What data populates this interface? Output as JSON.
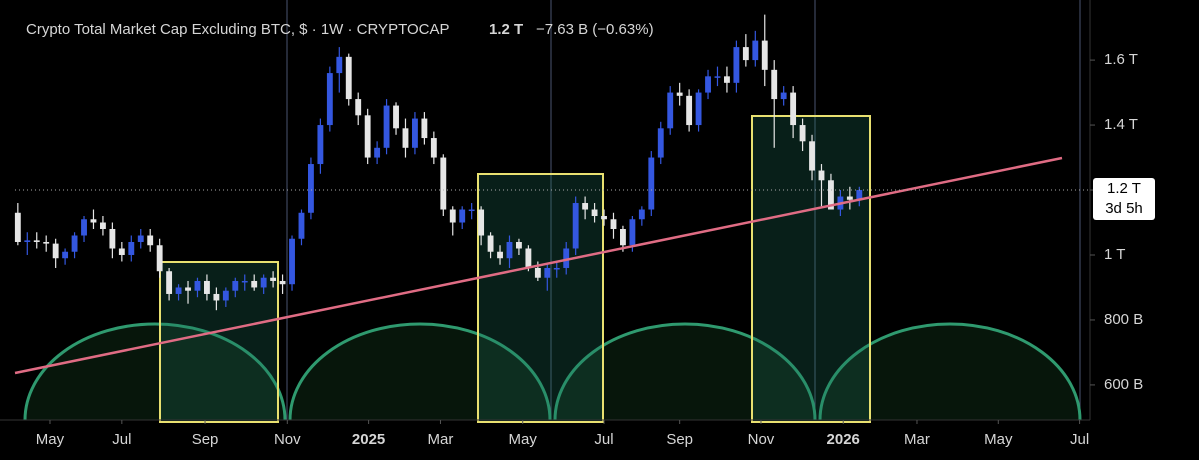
{
  "chart_data": {
    "type": "candlestick",
    "title": "Crypto Total Market Cap Excluding BTC, $ · 1W · CRYPTOCAP",
    "last_price": "1.2 T",
    "change": "−7.63 B (−0.63%)",
    "price_label": "1.2 T",
    "countdown": "3d 5h",
    "up_color": "#3457e0",
    "down_color": "#e6e6e6",
    "ylim": [
      492,
      1785
    ],
    "yticks": [
      {
        "value": 600,
        "label": "600 B"
      },
      {
        "value": 800,
        "label": "800 B"
      },
      {
        "value": 1000,
        "label": "1 T"
      },
      {
        "value": 1200,
        "label": "1.2 T"
      },
      {
        "value": 1400,
        "label": "1.4 T"
      },
      {
        "value": 1600,
        "label": "1.6 T"
      }
    ],
    "xlim": [
      -0.3,
      113.4
    ],
    "xticks": [
      {
        "value": 3.4,
        "label": "May"
      },
      {
        "value": 11.0,
        "label": "Jul"
      },
      {
        "value": 19.8,
        "label": "Sep"
      },
      {
        "value": 28.5,
        "label": "Nov"
      },
      {
        "value": 37.1,
        "label": "2025"
      },
      {
        "value": 44.7,
        "label": "Mar"
      },
      {
        "value": 53.4,
        "label": "May"
      },
      {
        "value": 62.0,
        "label": "Jul"
      },
      {
        "value": 70.0,
        "label": "Sep"
      },
      {
        "value": 78.6,
        "label": "Nov"
      },
      {
        "value": 87.3,
        "label": "2026"
      },
      {
        "value": 95.1,
        "label": "Mar"
      },
      {
        "value": 103.7,
        "label": "May"
      },
      {
        "value": 112.3,
        "label": "Jul"
      }
    ],
    "open": [
      1130,
      1040,
      1045,
      1040,
      1035,
      990,
      1010,
      1060,
      1110,
      1100,
      1080,
      1020,
      1000,
      1040,
      1060,
      1030,
      950,
      880,
      900,
      890,
      920,
      880,
      860,
      890,
      920,
      920,
      900,
      930,
      920,
      910,
      1050,
      1130,
      1280,
      1400,
      1560,
      1610,
      1480,
      1430,
      1300,
      1330,
      1460,
      1390,
      1330,
      1420,
      1360,
      1300,
      1140,
      1100,
      1140,
      1140,
      1060,
      1010,
      990,
      1040,
      1020,
      960,
      930,
      960,
      960,
      1020,
      1160,
      1140,
      1120,
      1110,
      1080,
      1030,
      1110,
      1140,
      1300,
      1390,
      1500,
      1490,
      1400,
      1500,
      1550,
      1550,
      1530,
      1640,
      1600,
      1660,
      1570,
      1480,
      1500,
      1400,
      1350,
      1260,
      1230,
      1140,
      1180,
      1170
    ],
    "high": [
      1160,
      1070,
      1070,
      1060,
      1050,
      1020,
      1070,
      1120,
      1140,
      1120,
      1100,
      1040,
      1060,
      1080,
      1080,
      1050,
      960,
      910,
      920,
      930,
      940,
      900,
      900,
      930,
      940,
      940,
      940,
      950,
      940,
      1060,
      1140,
      1300,
      1420,
      1580,
      1640,
      1620,
      1500,
      1450,
      1350,
      1480,
      1470,
      1420,
      1440,
      1440,
      1380,
      1310,
      1150,
      1150,
      1160,
      1150,
      1070,
      1030,
      1060,
      1050,
      1030,
      980,
      970,
      980,
      1040,
      1180,
      1180,
      1160,
      1140,
      1130,
      1090,
      1120,
      1150,
      1320,
      1410,
      1520,
      1530,
      1510,
      1510,
      1570,
      1580,
      1580,
      1660,
      1680,
      1690,
      1740,
      1600,
      1520,
      1520,
      1420,
      1370,
      1280,
      1250,
      1200,
      1210,
      1210
    ],
    "low": [
      1030,
      1000,
      1020,
      1010,
      960,
      970,
      990,
      1040,
      1080,
      1060,
      990,
      980,
      980,
      1020,
      1010,
      930,
      860,
      860,
      850,
      870,
      860,
      830,
      840,
      870,
      890,
      890,
      880,
      900,
      880,
      890,
      1030,
      1110,
      1250,
      1380,
      1500,
      1460,
      1400,
      1280,
      1280,
      1310,
      1370,
      1300,
      1310,
      1340,
      1280,
      1120,
      1060,
      1080,
      1110,
      1030,
      990,
      970,
      960,
      1000,
      950,
      920,
      890,
      930,
      940,
      1000,
      1110,
      1100,
      1090,
      1050,
      1010,
      1010,
      1090,
      1120,
      1280,
      1370,
      1460,
      1380,
      1380,
      1480,
      1520,
      1500,
      1500,
      1580,
      1580,
      1520,
      1330,
      1460,
      1360,
      1320,
      1230,
      1150,
      1140,
      1120,
      1140,
      1150
    ],
    "close": [
      1040,
      1045,
      1040,
      1035,
      990,
      1010,
      1060,
      1110,
      1100,
      1080,
      1020,
      1000,
      1040,
      1060,
      1030,
      950,
      880,
      900,
      890,
      920,
      880,
      860,
      890,
      920,
      920,
      900,
      930,
      920,
      910,
      1050,
      1130,
      1280,
      1400,
      1560,
      1610,
      1480,
      1430,
      1300,
      1330,
      1460,
      1390,
      1330,
      1420,
      1360,
      1300,
      1140,
      1100,
      1140,
      1140,
      1060,
      1010,
      990,
      1040,
      1020,
      960,
      930,
      960,
      960,
      1020,
      1160,
      1140,
      1120,
      1110,
      1080,
      1030,
      1110,
      1140,
      1300,
      1390,
      1500,
      1490,
      1400,
      1500,
      1550,
      1550,
      1530,
      1640,
      1600,
      1660,
      1570,
      1480,
      1500,
      1400,
      1350,
      1260,
      1230,
      1140,
      1180,
      1170,
      1200
    ]
  }
}
